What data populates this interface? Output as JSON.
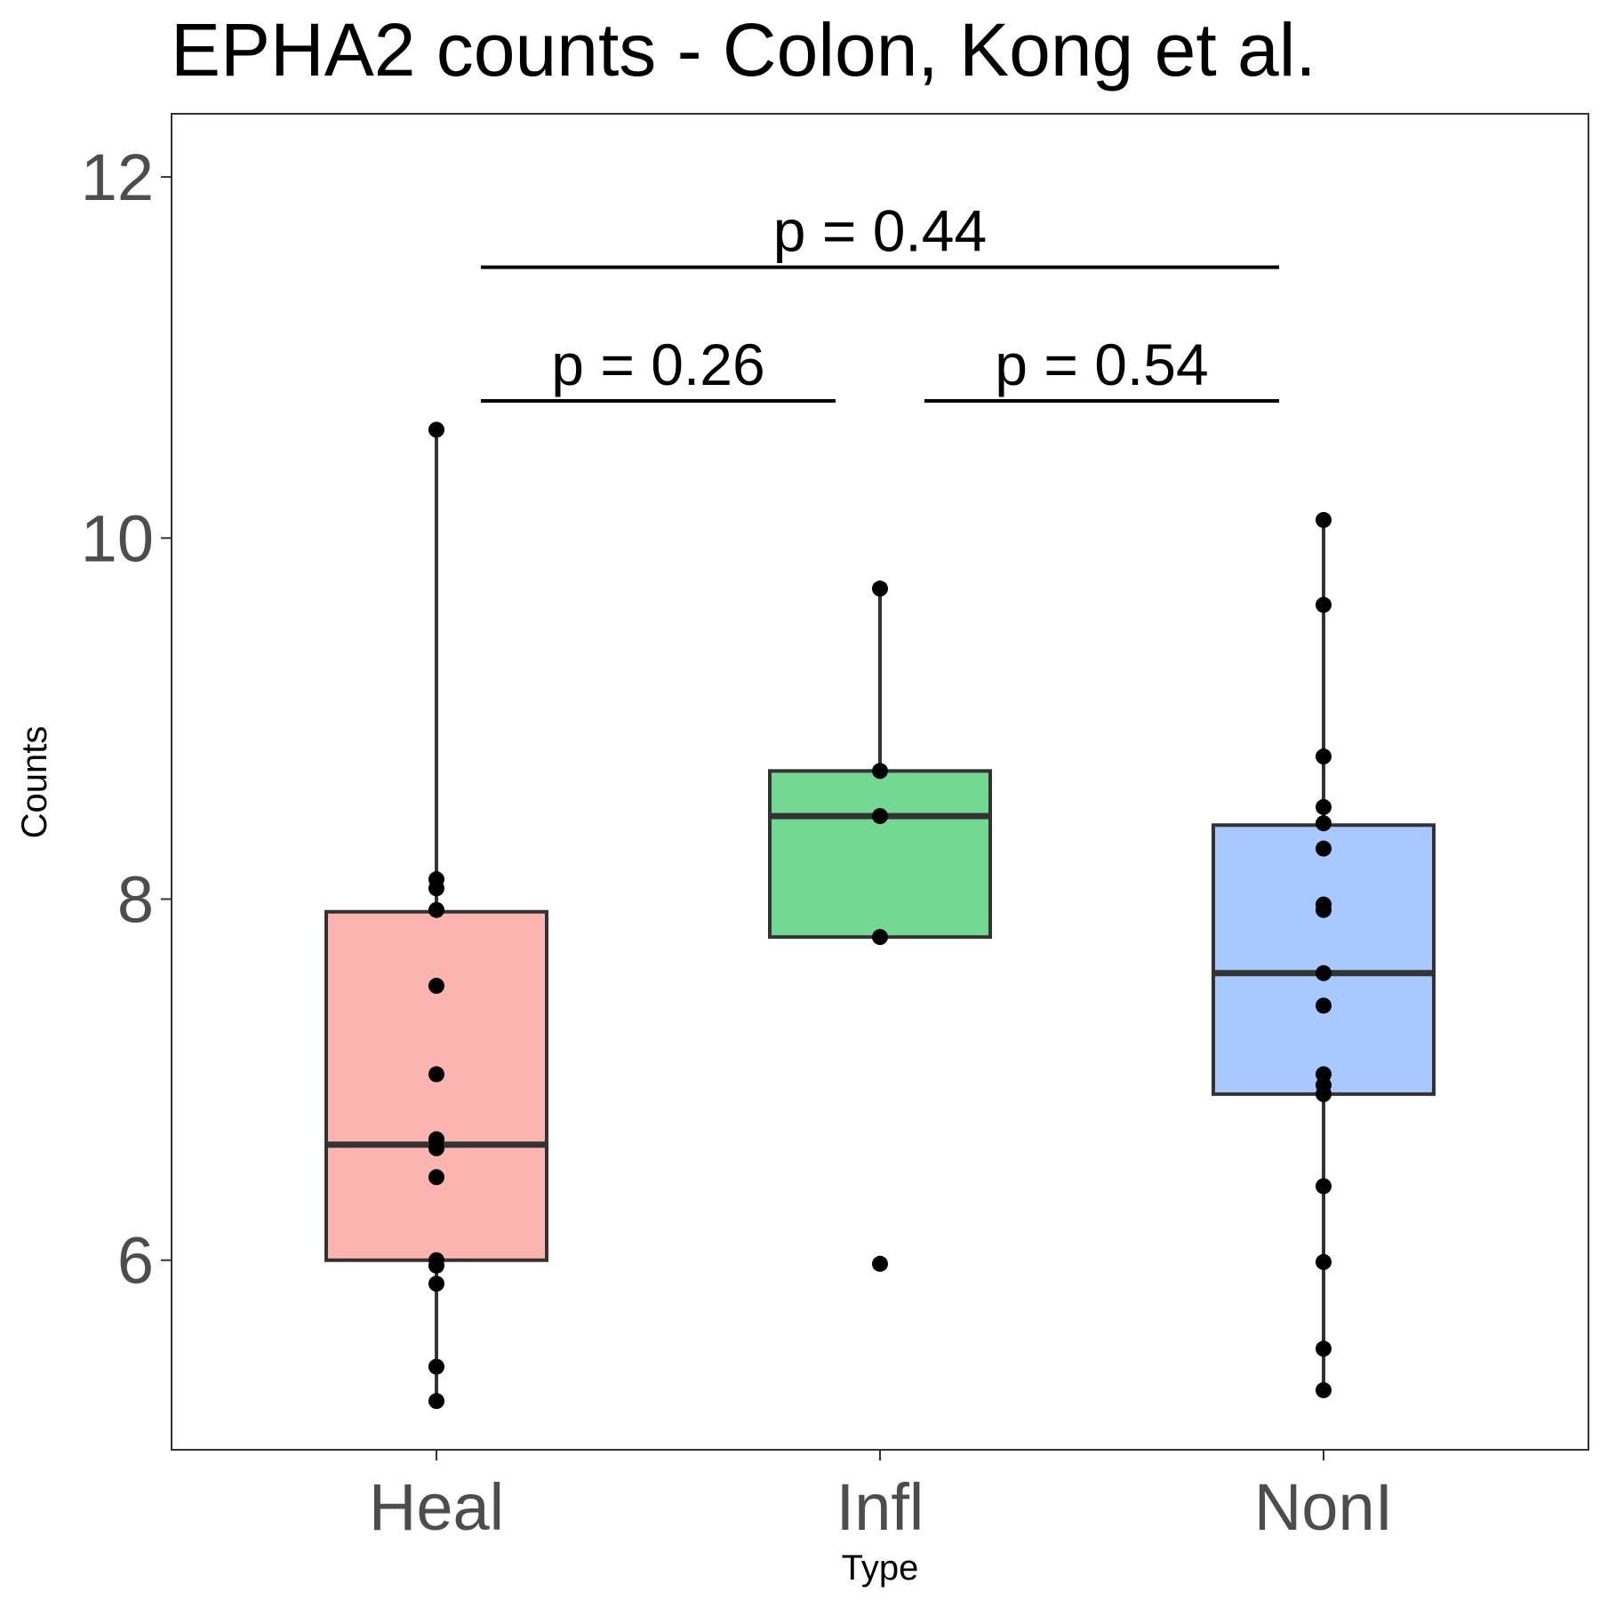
{
  "chart_data": {
    "type": "box",
    "title": "EPHA2 counts - Colon, Kong et al.",
    "xlabel": "Type",
    "ylabel": "Counts",
    "categories": [
      "Heal",
      "Infl",
      "NonI"
    ],
    "yticks": [
      6,
      8,
      10,
      12
    ],
    "ylim": [
      4.95,
      12.35
    ],
    "grid": false,
    "colors": [
      "#F8766D",
      "#00BA38",
      "#619CFF"
    ],
    "boxes": [
      {
        "category": "Heal",
        "lower_whisker": 5.22,
        "q1": 6.0,
        "median": 6.64,
        "q3": 7.93,
        "upper_whisker": 10.6
      },
      {
        "category": "Infl",
        "lower_whisker": 7.79,
        "q1": 7.79,
        "median": 8.46,
        "q3": 8.71,
        "upper_whisker": 9.72
      },
      {
        "category": "NonI",
        "lower_whisker": 5.28,
        "q1": 6.92,
        "median": 7.59,
        "q3": 8.41,
        "upper_whisker": 10.1
      }
    ],
    "points": [
      {
        "category": "Heal",
        "values": [
          10.6,
          8.11,
          8.06,
          7.94,
          7.52,
          7.03,
          6.67,
          6.62,
          6.46,
          6.0,
          5.97,
          5.87,
          5.41,
          5.22
        ]
      },
      {
        "category": "Infl",
        "values": [
          9.72,
          8.71,
          8.46,
          7.79,
          5.98
        ]
      },
      {
        "category": "NonI",
        "values": [
          10.1,
          9.63,
          8.79,
          8.51,
          8.42,
          8.28,
          7.97,
          7.94,
          7.59,
          7.41,
          7.03,
          6.97,
          6.92,
          6.41,
          5.99,
          5.51,
          5.28
        ]
      }
    ],
    "comparisons": [
      {
        "from": "Heal",
        "to": "Infl",
        "label": "p = 0.26",
        "y": 10.76
      },
      {
        "from": "Infl",
        "to": "NonI",
        "label": "p = 0.54",
        "y": 10.76
      },
      {
        "from": "Heal",
        "to": "NonI",
        "label": "p = 0.44",
        "y": 11.5
      }
    ]
  }
}
